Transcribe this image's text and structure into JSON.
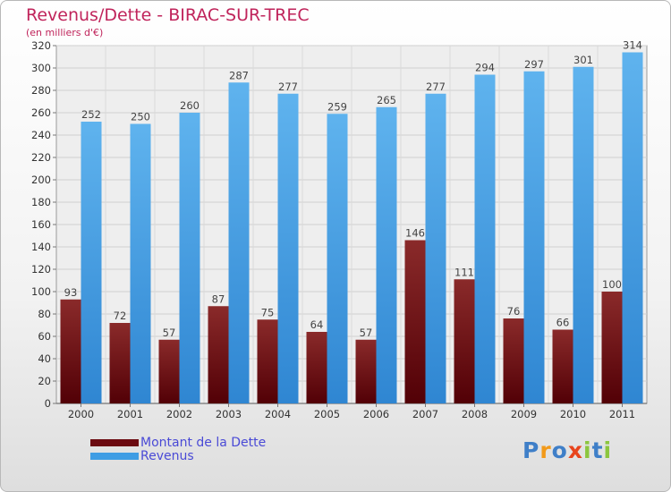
{
  "title": "Revenus/Dette - BIRAC-SUR-TREC",
  "subtitle": "(en milliers d'€)",
  "legend": [
    {
      "label": "Montant de la Dette",
      "color": "#6b0a10"
    },
    {
      "label": "Revenus",
      "color": "#3f9de4"
    }
  ],
  "logo": {
    "text": "Proxiti",
    "letters": [
      {
        "ch": "P",
        "color": "#3f7fc8"
      },
      {
        "ch": "r",
        "color": "#f29a1a"
      },
      {
        "ch": "o",
        "color": "#3f7fc8"
      },
      {
        "ch": "x",
        "color": "#e8441c"
      },
      {
        "ch": "i",
        "color": "#8cc63e"
      },
      {
        "ch": "t",
        "color": "#3f7fc8"
      },
      {
        "ch": "i",
        "color": "#8cc63e"
      }
    ]
  },
  "chart_data": {
    "type": "bar",
    "title": "Revenus/Dette - BIRAC-SUR-TREC",
    "subtitle": "(en milliers d'€)",
    "categories": [
      "2000",
      "2001",
      "2002",
      "2003",
      "2004",
      "2005",
      "2006",
      "2007",
      "2008",
      "2009",
      "2010",
      "2011"
    ],
    "series": [
      {
        "name": "Montant de la Dette",
        "color": "#6b0a10",
        "values": [
          93,
          72,
          57,
          87,
          75,
          64,
          57,
          146,
          111,
          76,
          66,
          100
        ]
      },
      {
        "name": "Revenus",
        "color": "#3f9de4",
        "values": [
          252,
          250,
          260,
          287,
          277,
          259,
          265,
          277,
          294,
          297,
          301,
          314
        ]
      }
    ],
    "ylim": [
      0,
      320
    ],
    "ytick_step": 20,
    "grid": true,
    "legend_position": "bottom-left"
  }
}
